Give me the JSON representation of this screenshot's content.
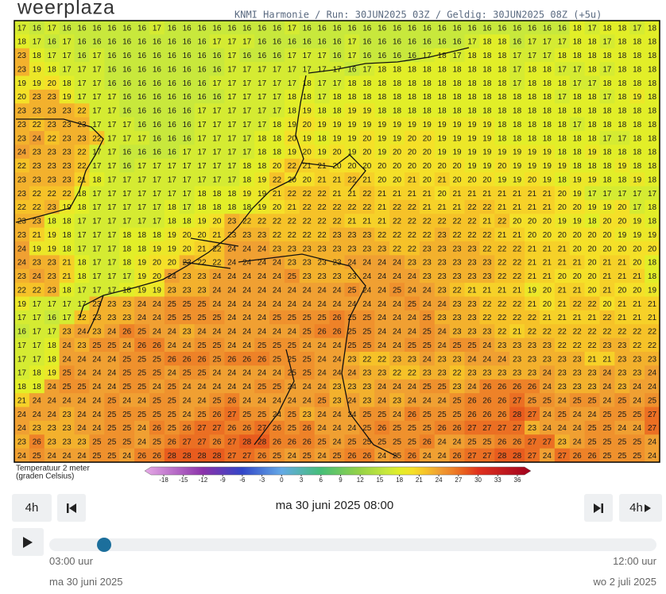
{
  "header": {
    "logo": "weerplaza",
    "model_info": "KNMI Harmonie / Run: 30JUN2025 03Z / Geldig: 30JUN2025 08Z (+5u)"
  },
  "map": {
    "rows": [
      [
        17,
        16,
        17,
        16,
        16,
        16,
        16,
        16,
        16,
        17,
        16,
        16,
        16,
        16,
        16,
        16,
        16,
        16,
        17,
        16,
        16,
        16,
        16,
        16,
        16,
        16,
        16,
        16,
        16,
        16,
        16,
        16,
        16,
        16,
        16,
        16,
        16,
        18,
        17,
        18,
        18,
        17,
        18
      ],
      [
        18,
        17,
        16,
        17,
        16,
        16,
        16,
        16,
        16,
        16,
        16,
        16,
        16,
        17,
        17,
        17,
        16,
        16,
        16,
        16,
        16,
        16,
        17,
        16,
        16,
        16,
        16,
        16,
        16,
        16,
        17,
        18,
        18,
        16,
        17,
        17,
        17,
        18,
        18,
        17,
        18,
        18,
        18
      ],
      [
        23,
        18,
        17,
        17,
        16,
        17,
        16,
        16,
        16,
        16,
        16,
        16,
        16,
        16,
        17,
        16,
        16,
        16,
        17,
        17,
        17,
        16,
        17,
        16,
        16,
        16,
        16,
        17,
        18,
        17,
        18,
        18,
        18,
        17,
        17,
        17,
        18,
        18,
        18,
        18,
        18,
        18,
        18
      ],
      [
        23,
        19,
        18,
        17,
        17,
        17,
        16,
        16,
        16,
        16,
        16,
        16,
        16,
        16,
        17,
        17,
        17,
        17,
        17,
        17,
        17,
        17,
        16,
        17,
        18,
        18,
        18,
        18,
        18,
        18,
        18,
        18,
        18,
        17,
        18,
        18,
        17,
        17,
        18,
        17,
        18,
        18,
        18
      ],
      [
        19,
        19,
        20,
        18,
        17,
        17,
        16,
        16,
        16,
        16,
        16,
        16,
        16,
        17,
        17,
        17,
        17,
        17,
        17,
        18,
        17,
        17,
        18,
        18,
        18,
        18,
        18,
        18,
        18,
        18,
        18,
        18,
        18,
        17,
        18,
        18,
        18,
        17,
        17,
        18,
        18,
        18,
        18
      ],
      [
        20,
        23,
        23,
        19,
        17,
        17,
        17,
        16,
        16,
        16,
        16,
        16,
        16,
        16,
        17,
        17,
        17,
        17,
        18,
        18,
        17,
        18,
        18,
        18,
        18,
        18,
        18,
        18,
        18,
        18,
        18,
        18,
        18,
        18,
        18,
        18,
        17,
        18,
        18,
        17,
        18,
        19,
        18
      ],
      [
        23,
        23,
        23,
        23,
        22,
        17,
        17,
        16,
        16,
        16,
        16,
        16,
        17,
        17,
        17,
        17,
        17,
        17,
        18,
        19,
        18,
        18,
        19,
        19,
        18,
        18,
        18,
        18,
        18,
        18,
        18,
        18,
        18,
        18,
        18,
        18,
        18,
        18,
        18,
        18,
        18,
        18,
        18
      ],
      [
        23,
        22,
        23,
        23,
        23,
        17,
        17,
        17,
        16,
        16,
        16,
        16,
        17,
        17,
        17,
        17,
        17,
        18,
        19,
        20,
        19,
        19,
        19,
        19,
        19,
        19,
        19,
        19,
        19,
        19,
        19,
        19,
        18,
        18,
        18,
        18,
        18,
        17,
        18,
        18,
        18,
        18,
        18
      ],
      [
        23,
        24,
        22,
        23,
        23,
        22,
        17,
        17,
        17,
        16,
        16,
        16,
        17,
        17,
        17,
        17,
        18,
        18,
        20,
        19,
        18,
        19,
        19,
        20,
        19,
        19,
        20,
        20,
        19,
        19,
        19,
        19,
        18,
        18,
        18,
        18,
        18,
        18,
        18,
        17,
        17,
        18,
        18
      ],
      [
        24,
        23,
        23,
        23,
        22,
        17,
        17,
        16,
        16,
        16,
        16,
        17,
        17,
        17,
        17,
        17,
        18,
        18,
        19,
        20,
        19,
        20,
        19,
        20,
        19,
        20,
        20,
        20,
        19,
        19,
        19,
        19,
        19,
        19,
        19,
        19,
        18,
        18,
        19,
        18,
        18,
        18,
        18
      ],
      [
        22,
        23,
        23,
        23,
        22,
        17,
        17,
        16,
        17,
        17,
        17,
        17,
        17,
        17,
        17,
        18,
        18,
        20,
        22,
        21,
        21,
        20,
        20,
        20,
        20,
        20,
        20,
        20,
        20,
        20,
        19,
        19,
        20,
        19,
        19,
        19,
        19,
        18,
        18,
        18,
        19,
        18,
        18
      ],
      [
        23,
        23,
        23,
        23,
        21,
        18,
        17,
        17,
        17,
        17,
        17,
        17,
        17,
        17,
        17,
        18,
        19,
        22,
        20,
        20,
        21,
        21,
        22,
        21,
        20,
        20,
        21,
        20,
        21,
        20,
        20,
        20,
        19,
        19,
        20,
        19,
        18,
        19,
        19,
        18,
        18,
        19,
        18
      ],
      [
        23,
        22,
        22,
        22,
        18,
        17,
        17,
        17,
        17,
        17,
        17,
        17,
        18,
        18,
        18,
        19,
        19,
        21,
        22,
        22,
        22,
        21,
        21,
        22,
        21,
        21,
        21,
        21,
        20,
        21,
        21,
        21,
        21,
        21,
        21,
        21,
        20,
        19,
        17,
        17,
        17,
        17,
        17
      ],
      [
        22,
        22,
        23,
        19,
        18,
        17,
        17,
        17,
        17,
        17,
        18,
        17,
        18,
        18,
        18,
        18,
        19,
        20,
        21,
        22,
        22,
        22,
        22,
        22,
        21,
        22,
        22,
        21,
        21,
        21,
        22,
        22,
        21,
        21,
        21,
        21,
        20,
        20,
        19,
        19,
        20,
        17,
        18
      ],
      [
        23,
        23,
        18,
        18,
        17,
        17,
        17,
        17,
        17,
        17,
        18,
        18,
        19,
        20,
        23,
        22,
        22,
        22,
        22,
        22,
        22,
        22,
        21,
        21,
        21,
        22,
        22,
        22,
        22,
        22,
        22,
        21,
        22,
        20,
        20,
        20,
        19,
        19,
        18,
        20,
        20,
        19,
        18
      ],
      [
        23,
        21,
        19,
        18,
        17,
        17,
        17,
        18,
        18,
        18,
        19,
        20,
        20,
        21,
        23,
        23,
        23,
        22,
        22,
        22,
        22,
        23,
        23,
        23,
        22,
        22,
        22,
        22,
        23,
        22,
        22,
        22,
        21,
        21,
        20,
        20,
        20,
        20,
        20,
        20,
        19,
        19,
        19
      ],
      [
        24,
        19,
        19,
        18,
        17,
        17,
        17,
        18,
        18,
        19,
        19,
        20,
        21,
        22,
        24,
        24,
        24,
        23,
        23,
        23,
        23,
        23,
        23,
        23,
        23,
        22,
        22,
        23,
        23,
        23,
        23,
        22,
        22,
        22,
        21,
        21,
        21,
        20,
        20,
        20,
        20,
        20,
        20
      ],
      [
        24,
        23,
        23,
        21,
        18,
        17,
        17,
        18,
        19,
        20,
        20,
        23,
        22,
        22,
        24,
        24,
        24,
        24,
        23,
        23,
        23,
        23,
        24,
        24,
        24,
        24,
        23,
        23,
        23,
        23,
        23,
        23,
        22,
        22,
        21,
        21,
        21,
        21,
        20,
        21,
        21,
        20,
        18
      ],
      [
        23,
        24,
        23,
        21,
        18,
        17,
        17,
        17,
        19,
        20,
        24,
        23,
        23,
        24,
        24,
        24,
        24,
        24,
        25,
        23,
        23,
        23,
        23,
        24,
        24,
        24,
        24,
        23,
        23,
        23,
        23,
        23,
        22,
        22,
        21,
        21,
        20,
        20,
        20,
        21,
        21,
        21,
        18
      ],
      [
        22,
        22,
        23,
        18,
        17,
        17,
        17,
        18,
        19,
        19,
        23,
        23,
        23,
        24,
        24,
        24,
        24,
        24,
        24,
        24,
        24,
        24,
        25,
        24,
        24,
        25,
        24,
        24,
        23,
        22,
        21,
        21,
        21,
        21,
        19,
        20,
        21,
        21,
        20,
        21,
        20,
        20,
        19
      ],
      [
        19,
        17,
        17,
        17,
        17,
        23,
        23,
        23,
        24,
        24,
        25,
        25,
        25,
        24,
        24,
        24,
        24,
        24,
        24,
        24,
        24,
        24,
        24,
        24,
        24,
        24,
        25,
        24,
        24,
        23,
        23,
        22,
        22,
        22,
        21,
        20,
        21,
        22,
        22,
        20,
        21,
        21,
        21
      ],
      [
        17,
        17,
        16,
        17,
        22,
        23,
        23,
        23,
        24,
        24,
        25,
        25,
        25,
        25,
        24,
        24,
        24,
        25,
        25,
        25,
        25,
        26,
        25,
        25,
        24,
        24,
        24,
        25,
        23,
        23,
        23,
        22,
        22,
        22,
        22,
        21,
        21,
        21,
        21,
        22,
        21,
        21,
        21
      ],
      [
        16,
        17,
        17,
        23,
        24,
        23,
        24,
        26,
        25,
        24,
        24,
        23,
        24,
        24,
        24,
        24,
        24,
        24,
        24,
        25,
        26,
        26,
        25,
        25,
        24,
        24,
        24,
        25,
        24,
        23,
        23,
        23,
        22,
        21,
        22,
        22,
        22,
        22,
        22,
        22,
        22,
        22,
        22
      ],
      [
        17,
        17,
        18,
        24,
        23,
        25,
        25,
        24,
        26,
        26,
        24,
        24,
        25,
        25,
        24,
        24,
        25,
        25,
        25,
        24,
        24,
        24,
        25,
        25,
        24,
        24,
        25,
        25,
        24,
        25,
        25,
        24,
        23,
        23,
        23,
        23,
        22,
        22,
        22,
        23,
        23,
        22,
        22
      ],
      [
        17,
        17,
        18,
        24,
        24,
        24,
        24,
        25,
        25,
        25,
        26,
        26,
        26,
        25,
        26,
        26,
        26,
        25,
        25,
        25,
        24,
        24,
        23,
        22,
        22,
        23,
        23,
        24,
        23,
        23,
        24,
        24,
        24,
        23,
        23,
        23,
        23,
        23,
        21,
        21,
        23,
        23,
        23
      ],
      [
        17,
        18,
        19,
        25,
        24,
        24,
        24,
        25,
        25,
        25,
        24,
        25,
        25,
        24,
        24,
        24,
        24,
        24,
        25,
        25,
        24,
        24,
        24,
        23,
        23,
        22,
        22,
        23,
        23,
        22,
        23,
        23,
        23,
        23,
        23,
        24,
        23,
        23,
        23,
        24,
        23,
        23,
        24
      ],
      [
        18,
        18,
        24,
        25,
        25,
        24,
        24,
        25,
        25,
        24,
        25,
        24,
        24,
        24,
        24,
        24,
        25,
        25,
        24,
        24,
        24,
        23,
        23,
        23,
        24,
        24,
        24,
        25,
        25,
        23,
        24,
        26,
        26,
        26,
        26,
        24,
        23,
        23,
        23,
        24,
        23,
        24,
        24
      ],
      [
        21,
        24,
        24,
        24,
        24,
        24,
        25,
        24,
        24,
        25,
        25,
        24,
        24,
        25,
        26,
        24,
        24,
        24,
        24,
        24,
        25,
        23,
        24,
        23,
        24,
        23,
        24,
        24,
        24,
        25,
        26,
        26,
        26,
        27,
        25,
        25,
        24,
        25,
        25,
        24,
        25,
        24,
        25
      ],
      [
        24,
        24,
        24,
        23,
        24,
        24,
        25,
        25,
        25,
        25,
        25,
        24,
        25,
        26,
        27,
        25,
        25,
        24,
        25,
        23,
        24,
        24,
        24,
        25,
        25,
        24,
        26,
        25,
        25,
        25,
        26,
        26,
        26,
        28,
        27,
        24,
        25,
        24,
        24,
        25,
        25,
        25,
        27
      ],
      [
        24,
        23,
        23,
        23,
        24,
        24,
        25,
        25,
        24,
        26,
        25,
        26,
        27,
        27,
        26,
        26,
        27,
        26,
        25,
        26,
        24,
        24,
        24,
        25,
        26,
        25,
        25,
        25,
        26,
        26,
        27,
        27,
        27,
        27,
        23,
        24,
        24,
        24,
        25,
        25,
        24,
        24,
        27
      ],
      [
        23,
        26,
        23,
        23,
        23,
        25,
        25,
        25,
        24,
        25,
        26,
        27,
        27,
        26,
        27,
        28,
        28,
        26,
        26,
        26,
        25,
        24,
        25,
        25,
        25,
        25,
        25,
        26,
        24,
        24,
        25,
        25,
        26,
        26,
        27,
        27,
        23,
        24,
        25,
        25,
        25,
        25,
        24
      ],
      [
        24,
        25,
        24,
        24,
        24,
        25,
        25,
        24,
        26,
        26,
        28,
        28,
        28,
        28,
        27,
        27,
        26,
        25,
        24,
        25,
        24,
        25,
        26,
        26,
        24,
        25,
        26,
        24,
        24,
        26,
        27,
        27,
        28,
        28,
        27,
        24,
        27,
        26,
        26,
        25,
        25,
        25,
        24
      ]
    ]
  },
  "legend": {
    "title_line1": "Temperatuur 2 meter",
    "title_line2": "(graden Celsius)",
    "ticks": [
      -18,
      -15,
      -12,
      -9,
      -6,
      -3,
      0,
      3,
      6,
      9,
      12,
      15,
      18,
      21,
      24,
      27,
      30,
      33,
      36
    ]
  },
  "controls": {
    "step_back": "4h",
    "current_time": "ma 30 juni 2025 08:00",
    "step_forward": "4h",
    "start_time": "03:00 uur",
    "end_time": "12:00 uur",
    "start_date": "ma 30 juni 2025",
    "end_date": "wo 2 juli 2025"
  }
}
